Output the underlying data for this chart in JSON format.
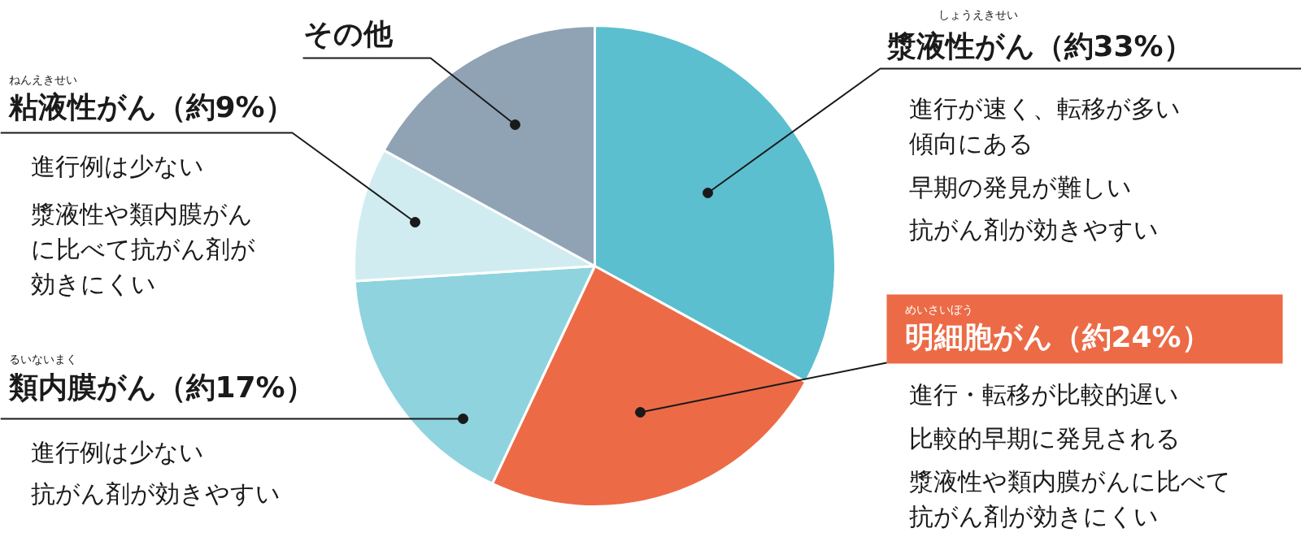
{
  "chart_data": {
    "type": "pie",
    "categories": [
      "漿液性がん",
      "明細胞がん",
      "類内膜がん",
      "粘液性がん",
      "その他"
    ],
    "values": [
      33,
      24,
      17,
      9,
      17
    ],
    "value_labels": [
      "（約33%）",
      "（約24%）",
      "（約17%）",
      "（約9%）",
      null
    ],
    "colors": [
      "#5bbfcf",
      "#ec6b46",
      "#8fd3df",
      "#d0ecf0",
      "#8fa3b5"
    ],
    "annotations": [
      "しょうえきせい",
      "進行が速く、転移が多い傾向にある",
      "早期の発見が難しい",
      "抗がん剤が効きやすい",
      "めいさいぼう",
      "進行・転移が比較的遅い",
      "比較的早期に発見される",
      "漿液性や類内膜がんに比べて抗がん剤が効きにくい",
      "るいないまく",
      "進行例は少ない",
      "抗がん剤が効きやすい",
      "ねんえきせい",
      "進行例は少ない",
      "漿液性や類内膜がんに比べて抗がん剤が効きにくい"
    ]
  }
}
